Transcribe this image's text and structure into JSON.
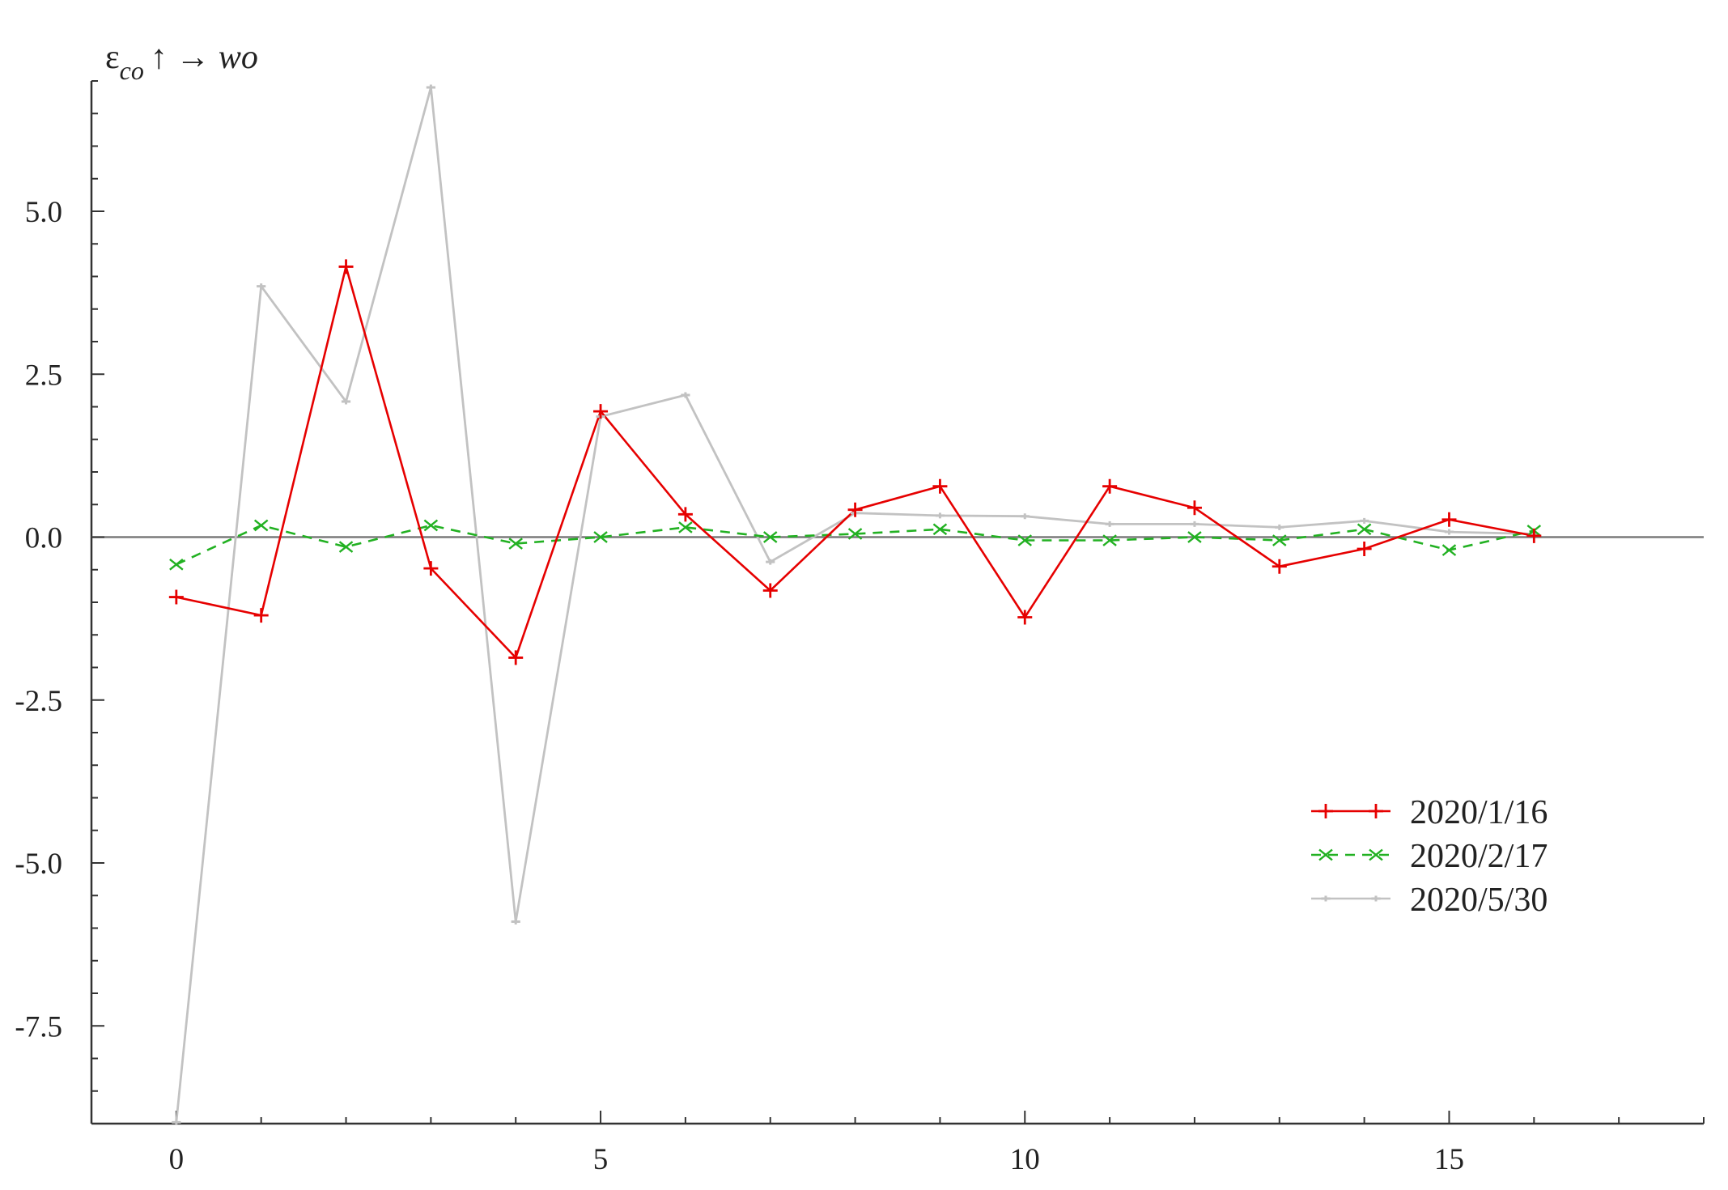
{
  "chart_data": {
    "type": "line",
    "title": "",
    "ylabel": "ε_co ↑ → wo",
    "ylabel_parts": {
      "base": "ε",
      "subscript": "co",
      "suffix": "↑ → wo"
    },
    "xlabel": "",
    "x": [
      0,
      1,
      2,
      3,
      4,
      5,
      6,
      7,
      8,
      9,
      10,
      11,
      12,
      13,
      14,
      15,
      16
    ],
    "xlim": [
      -1.0,
      18.0
    ],
    "ylim": [
      -9.0,
      7.0
    ],
    "x_ticks": [
      0,
      5,
      10,
      15
    ],
    "x_tick_labels": [
      "0",
      "5",
      "10",
      "15"
    ],
    "y_ticks": [
      5.0,
      2.5,
      0.0,
      -2.5,
      -5.0,
      -7.5
    ],
    "y_tick_labels": [
      "5.0",
      "2.5",
      "0.0",
      "-2.5",
      "-5.0",
      "-7.5"
    ],
    "grid": false,
    "zero_line": true,
    "legend_position": "right",
    "series": [
      {
        "name": "2020/1/16",
        "color": "#e60000",
        "dash": "solid",
        "marker": "plus",
        "values": [
          -0.92,
          -1.2,
          4.15,
          -0.48,
          -1.85,
          1.93,
          0.35,
          -0.82,
          0.42,
          0.78,
          -1.23,
          0.78,
          0.45,
          -0.45,
          -0.18,
          0.27,
          0.02
        ]
      },
      {
        "name": "2020/2/17",
        "color": "#22b122",
        "dash": "dashed",
        "marker": "x",
        "values": [
          -0.42,
          0.18,
          -0.15,
          0.18,
          -0.1,
          0.0,
          0.15,
          0.0,
          0.05,
          0.12,
          -0.05,
          -0.05,
          0.0,
          -0.05,
          0.12,
          -0.2,
          0.1
        ]
      },
      {
        "name": "2020/5/30",
        "color": "#c2c2c2",
        "dash": "solid",
        "marker": "dot",
        "values": [
          -8.98,
          3.85,
          2.08,
          6.9,
          -5.9,
          1.85,
          2.18,
          -0.38,
          0.37,
          0.33,
          0.32,
          0.2,
          0.2,
          0.15,
          0.25,
          0.08,
          0.05
        ]
      }
    ]
  }
}
